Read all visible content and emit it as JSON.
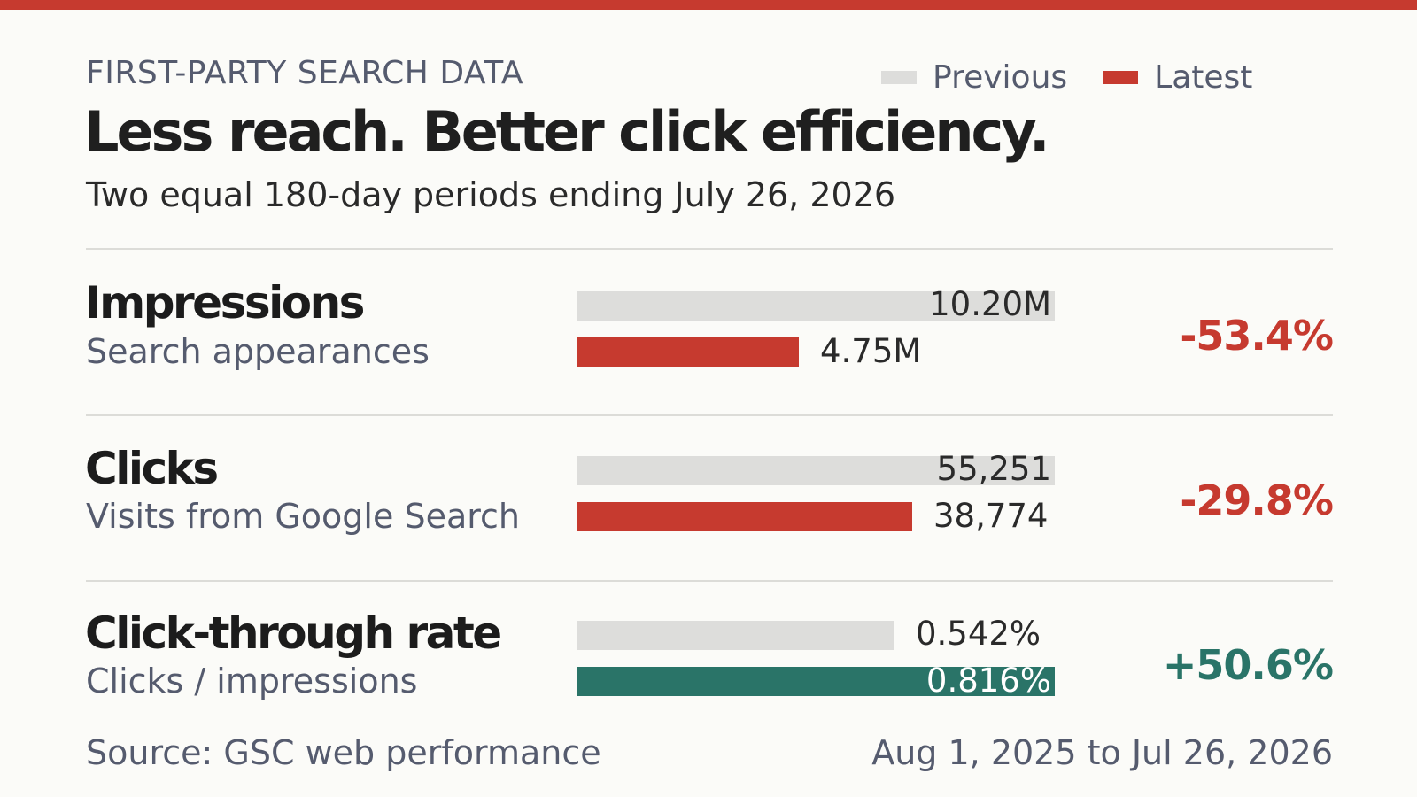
{
  "header": {
    "kicker": "FIRST-PARTY SEARCH DATA",
    "title": "Less reach. Better click efficiency.",
    "subtitle": "Two equal 180-day periods ending July 26, 2026"
  },
  "legend": {
    "previous_label": "Previous",
    "latest_label": "Latest"
  },
  "colors": {
    "accent_red": "#c63a2f",
    "positive_teal": "#2a7468",
    "previous_gray": "#dddddb"
  },
  "chart_data": {
    "type": "bar",
    "orientation": "horizontal",
    "series": [
      {
        "name": "Previous"
      },
      {
        "name": "Latest"
      }
    ],
    "metrics": [
      {
        "name": "Impressions",
        "description": "Search appearances",
        "previous_value": 10200000,
        "latest_value": 4750000,
        "previous_label": "10.20M",
        "latest_label": "4.75M",
        "change": "-53.4%",
        "direction": "down"
      },
      {
        "name": "Clicks",
        "description": "Visits from Google Search",
        "previous_value": 55251,
        "latest_value": 38774,
        "previous_label": "55,251",
        "latest_label": "38,774",
        "change": "-29.8%",
        "direction": "down"
      },
      {
        "name": "Click-through rate",
        "description": "Clicks / impressions",
        "previous_value": 0.542,
        "latest_value": 0.816,
        "previous_label": "0.542%",
        "latest_label": "0.816%",
        "change": "+50.6%",
        "direction": "up"
      }
    ]
  },
  "footer": {
    "source": "Source: GSC web performance",
    "date_range": "Aug 1, 2025 to Jul 26, 2026"
  }
}
